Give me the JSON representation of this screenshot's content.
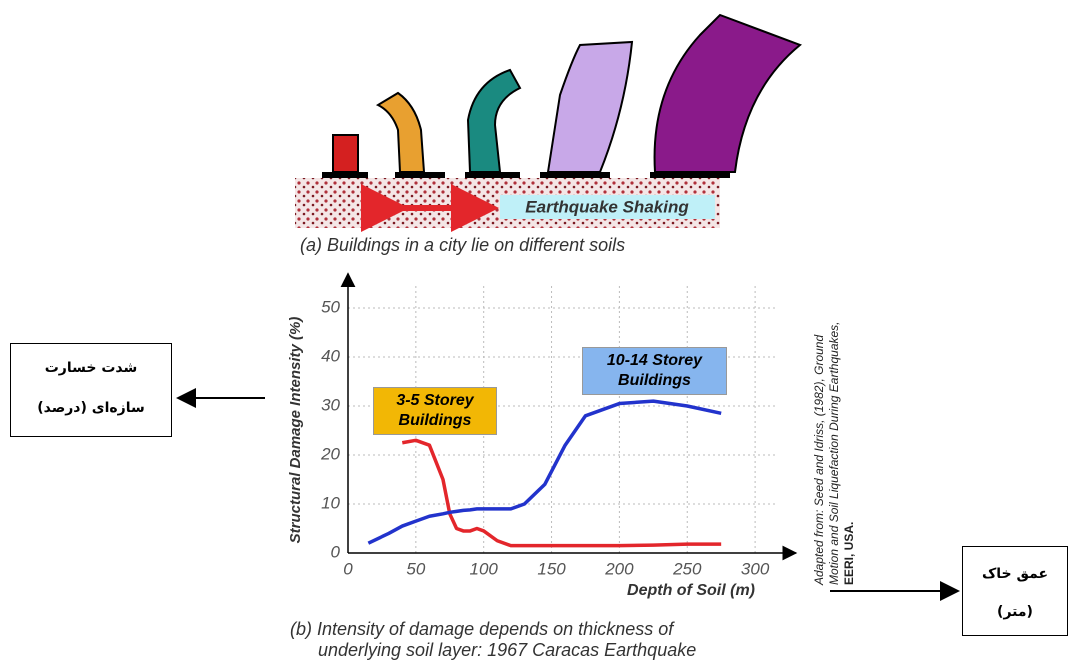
{
  "illustration": {
    "label": "Earthquake Shaking",
    "caption": "(a) Buildings in a city lie on different soils"
  },
  "annotations": [
    {
      "lines": [
        "شدت خسارت",
        "سازه‌ای (درصد)"
      ]
    },
    {
      "lines": [
        "عمق خاک",
        "(متر)"
      ]
    }
  ],
  "chart_data": {
    "type": "line",
    "x_label": "Depth of Soil (m)",
    "y_label": "Structural Damage Intensity (%)",
    "caption": [
      "(b) Intensity of damage depends on thickness of",
      "underlying soil layer: 1967 Caracas Earthquake"
    ],
    "source": [
      "Adapted from: Seed and Idriss, (1982), Ground",
      "Motion and Soil Liquefaction During Earthquakes,",
      "EERI, USA."
    ],
    "x": [
      15,
      30,
      40,
      50,
      60,
      70,
      75,
      80,
      85,
      90,
      95,
      100,
      110,
      120,
      130,
      145,
      160,
      175,
      200,
      225,
      250,
      275
    ],
    "series": [
      {
        "name": "3-5 Storey Buildings",
        "color": "#e3262b",
        "label_color": "#f2b705",
        "values": [
          null,
          null,
          22.5,
          23,
          22,
          15,
          8,
          5,
          4.5,
          4.5,
          5,
          4.5,
          2.5,
          1.5,
          1.5,
          1.5,
          1.5,
          1.5,
          1.5,
          1.6,
          1.8,
          1.8
        ]
      },
      {
        "name": "10-14 Storey Buildings",
        "color": "#2233cc",
        "label_color": "#86b5ee",
        "values": [
          2,
          4,
          5.5,
          6.5,
          7.5,
          8,
          8.3,
          8.5,
          8.7,
          8.8,
          9,
          9,
          9,
          9,
          10,
          14,
          22,
          28,
          30.5,
          31,
          30,
          28.5
        ]
      }
    ],
    "xlim": [
      0,
      330
    ],
    "ylim": [
      0,
      57
    ],
    "xticks": [
      0,
      50,
      100,
      150,
      200,
      250,
      300
    ],
    "yticks": [
      0,
      10,
      20,
      30,
      40,
      50
    ],
    "grid": true
  }
}
